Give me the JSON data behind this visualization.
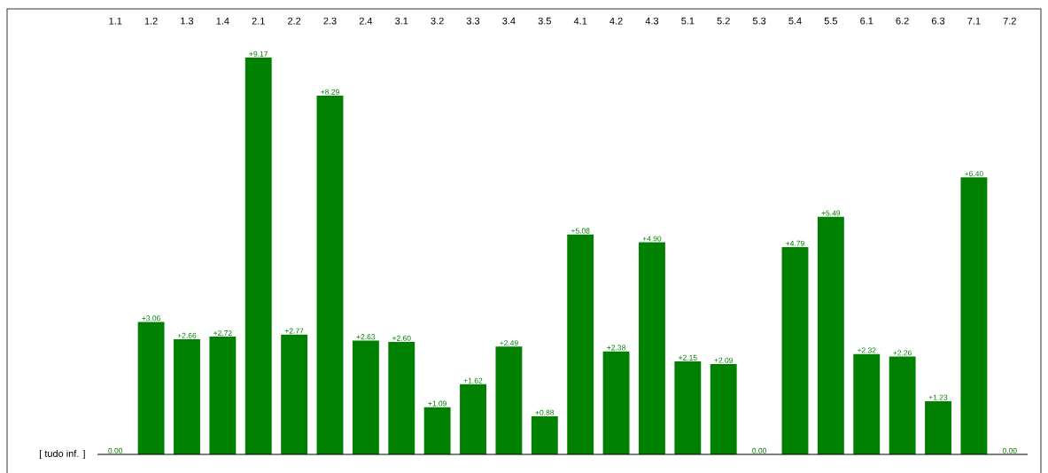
{
  "chart_data": {
    "type": "bar",
    "categories": [
      "1.1",
      "1.2",
      "1.3",
      "1.4",
      "2.1",
      "2.2",
      "2.3",
      "2.4",
      "3.1",
      "3.2",
      "3.3",
      "3.4",
      "3.5",
      "4.1",
      "4.2",
      "4.3",
      "5.1",
      "5.2",
      "5.3",
      "5.4",
      "5.5",
      "6.1",
      "6.2",
      "6.3",
      "7.1",
      "7.2"
    ],
    "values": [
      0.0,
      3.06,
      2.66,
      2.72,
      9.17,
      2.77,
      8.29,
      2.63,
      2.6,
      1.09,
      1.62,
      2.49,
      0.88,
      5.08,
      2.38,
      4.9,
      2.15,
      2.09,
      0.0,
      4.79,
      5.49,
      2.32,
      2.26,
      1.23,
      6.4,
      0.0
    ],
    "value_labels": [
      "0.00",
      "+3.06",
      "+2.66",
      "+2.72",
      "+9.17",
      "+2.77",
      "+8.29",
      "+2.63",
      "+2.60",
      "+1.09",
      "+1.62",
      "+2.49",
      "+0.88",
      "+5.08",
      "+2.38",
      "+4.90",
      "+2.15",
      "+2.09",
      "0.00",
      "+4.79",
      "+5.49",
      "+2.32",
      "+2.26",
      "+1.23",
      "+6.40",
      "0.00"
    ],
    "color": "#008000",
    "annotations": [
      "[ tudo inf. ]"
    ]
  }
}
